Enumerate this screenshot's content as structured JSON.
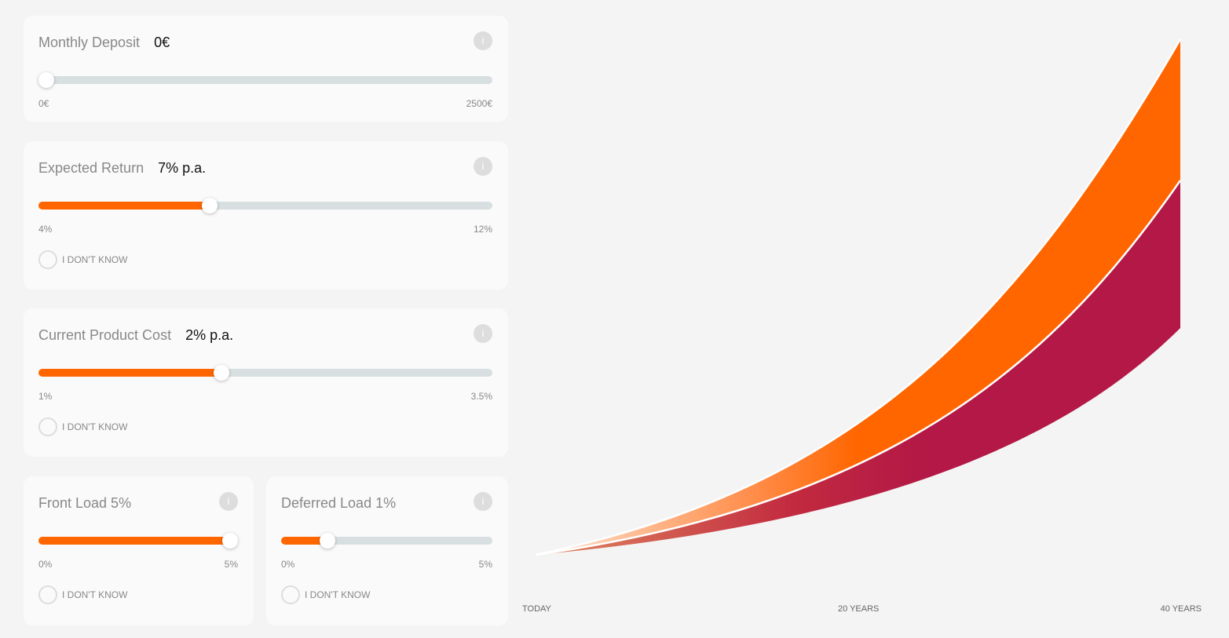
{
  "panels": [
    {
      "title": "Monthly Deposit",
      "value": "0€",
      "min": "0€",
      "max": "2500€"
    },
    {
      "title": "Expected Return",
      "value": "7% p.a.",
      "min": "4%",
      "max": "12%",
      "checkbox": "I DON'T KNOW"
    },
    {
      "title": "Current Product Cost",
      "value": "2% p.a.",
      "min": "1%",
      "max": "3.5%",
      "checkbox": "I DON'T KNOW"
    },
    {
      "title": "Front Load 5%",
      "min": "0%",
      "max": "5%",
      "checkbox": "I DON'T KNOW"
    },
    {
      "title": "Deferred Load 1%",
      "min": "0%",
      "max": "5%",
      "checkbox": "I DON'T KNOW"
    }
  ],
  "chart": {
    "x_labels": [
      "TODAY",
      "20 YEARS",
      "40 YEARS"
    ]
  }
}
